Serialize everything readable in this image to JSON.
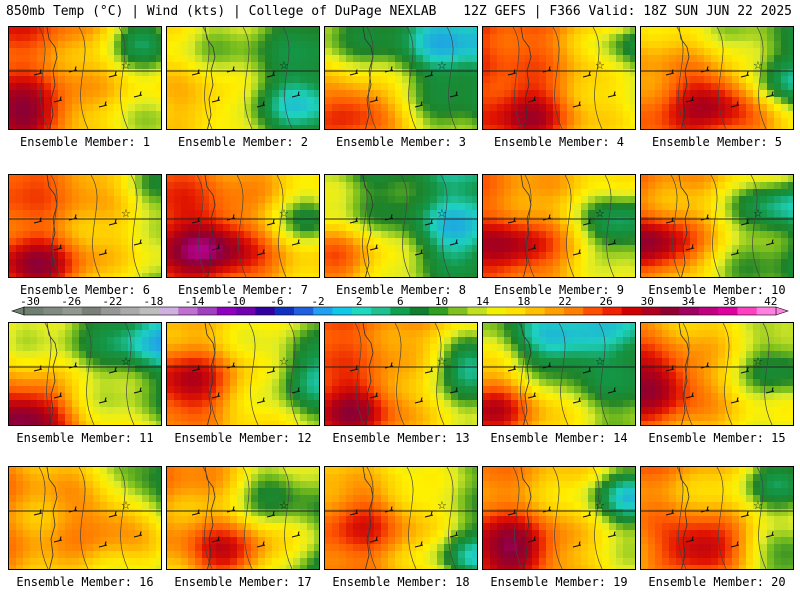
{
  "header": {
    "left": "850mb Temp (°C) | Wind (kts) | College of DuPage NEXLAB",
    "right": "12Z GEFS | F366 Valid: 18Z SUN JUN 22 2025"
  },
  "caption_prefix": "Ensemble Member:",
  "members": [
    {
      "label": "Ensemble Member: 1",
      "base": 20,
      "grad": [
        1,
        -1
      ],
      "hot": [
        0.1,
        0.85,
        33
      ],
      "cold": [
        0.85,
        0.1,
        8
      ]
    },
    {
      "label": "Ensemble Member: 2",
      "base": 12,
      "grad": [
        1,
        0
      ],
      "hot": [
        0.25,
        0.75,
        18
      ],
      "cold": [
        0.85,
        0.7,
        7
      ]
    },
    {
      "label": "Ensemble Member: 3",
      "base": 11,
      "grad": [
        1,
        1
      ],
      "hot": [
        0.2,
        0.8,
        24
      ],
      "cold": [
        0.8,
        0.2,
        7
      ]
    },
    {
      "label": "Ensemble Member: 4",
      "base": 21,
      "grad": [
        1,
        -1
      ],
      "hot": [
        0.3,
        0.85,
        32
      ],
      "cold": [
        0.95,
        0.2,
        11
      ]
    },
    {
      "label": "Ensemble Member: 5",
      "base": 18,
      "grad": [
        1,
        1
      ],
      "hot": [
        0.5,
        0.7,
        31
      ],
      "cold": [
        0.9,
        0.5,
        9
      ]
    },
    {
      "label": "Ensemble Member: 6",
      "base": 20,
      "grad": [
        1,
        -1
      ],
      "hot": [
        0.2,
        0.9,
        32
      ],
      "cold": [
        0.95,
        0.1,
        12
      ]
    },
    {
      "label": "Ensemble Member: 7",
      "base": 22,
      "grad": [
        1,
        0
      ],
      "hot": [
        0.3,
        0.7,
        34
      ],
      "cold": [
        0.9,
        0.4,
        14
      ]
    },
    {
      "label": "Ensemble Member: 8",
      "base": 11,
      "grad": [
        1,
        1
      ],
      "hot": [
        0.1,
        0.8,
        19
      ],
      "cold": [
        0.85,
        0.6,
        5
      ]
    },
    {
      "label": "Ensemble Member: 9",
      "base": 19,
      "grad": [
        1,
        0
      ],
      "hot": [
        0.2,
        0.7,
        29
      ],
      "cold": [
        0.9,
        0.5,
        9
      ]
    },
    {
      "label": "Ensemble Member: 10",
      "base": 16,
      "grad": [
        1,
        -1
      ],
      "hot": [
        0.1,
        0.7,
        31
      ],
      "cold": [
        0.9,
        0.3,
        7
      ]
    },
    {
      "label": "Ensemble Member: 11",
      "base": 14,
      "grad": [
        1,
        1
      ],
      "hot": [
        0.1,
        0.9,
        30
      ],
      "cold": [
        0.9,
        0.2,
        8
      ]
    },
    {
      "label": "Ensemble Member: 12",
      "base": 17,
      "grad": [
        1,
        0
      ],
      "hot": [
        0.15,
        0.6,
        28
      ],
      "cold": [
        0.95,
        0.5,
        9
      ]
    },
    {
      "label": "Ensemble Member: 13",
      "base": 20,
      "grad": [
        1,
        -1
      ],
      "hot": [
        0.2,
        0.85,
        32
      ],
      "cold": [
        0.95,
        0.4,
        8
      ]
    },
    {
      "label": "Ensemble Member: 14",
      "base": 12,
      "grad": [
        1,
        1
      ],
      "hot": [
        0.1,
        0.8,
        24
      ],
      "cold": [
        0.5,
        0.2,
        4
      ]
    },
    {
      "label": "Ensemble Member: 15",
      "base": 18,
      "grad": [
        1,
        0
      ],
      "hot": [
        0.1,
        0.6,
        30
      ],
      "cold": [
        0.9,
        0.4,
        12
      ]
    },
    {
      "label": "Ensemble Member: 16",
      "base": 18,
      "grad": [
        1,
        0
      ],
      "hot": [
        0.7,
        0.5,
        26
      ],
      "cold": [
        0.9,
        0.2,
        10
      ]
    },
    {
      "label": "Ensemble Member: 17",
      "base": 17,
      "grad": [
        1,
        -1
      ],
      "hot": [
        0.4,
        0.85,
        30
      ],
      "cold": [
        0.7,
        0.2,
        9
      ]
    },
    {
      "label": "Ensemble Member: 18",
      "base": 18,
      "grad": [
        1,
        1
      ],
      "hot": [
        0.3,
        0.5,
        25
      ],
      "cold": [
        0.95,
        0.85,
        7
      ]
    },
    {
      "label": "Ensemble Member: 19",
      "base": 19,
      "grad": [
        1,
        0
      ],
      "hot": [
        0.2,
        0.8,
        32
      ],
      "cold": [
        0.95,
        0.3,
        8
      ]
    },
    {
      "label": "Ensemble Member: 20",
      "base": 17,
      "grad": [
        1,
        -1
      ],
      "hot": [
        0.4,
        0.8,
        33
      ],
      "cold": [
        0.9,
        0.1,
        9
      ]
    }
  ],
  "colorbar": {
    "ticks": [
      "-30",
      "-26",
      "-22",
      "-18",
      "-14",
      "-10",
      "-6",
      "-2",
      "2",
      "6",
      "10",
      "14",
      "18",
      "22",
      "26",
      "30",
      "34",
      "38",
      "42"
    ],
    "colors": [
      "#708070",
      "#808a80",
      "#909890",
      "#7a7f7a",
      "#969696",
      "#aaaaaa",
      "#bdbdbd",
      "#d0b0e0",
      "#c070d0",
      "#a040c0",
      "#9000c0",
      "#7000b0",
      "#3000a0",
      "#1030c0",
      "#2060e0",
      "#20a0f0",
      "#10c8e8",
      "#20d8c0",
      "#20c090",
      "#10a050",
      "#108030",
      "#30a020",
      "#80c020",
      "#c0e020",
      "#f0f000",
      "#ffe000",
      "#ffc000",
      "#ffa000",
      "#ff8000",
      "#ff5000",
      "#f02000",
      "#d00000",
      "#b00020",
      "#900030",
      "#a00060",
      "#c00080",
      "#e000a0",
      "#ff40c0",
      "#ff80e0"
    ]
  }
}
